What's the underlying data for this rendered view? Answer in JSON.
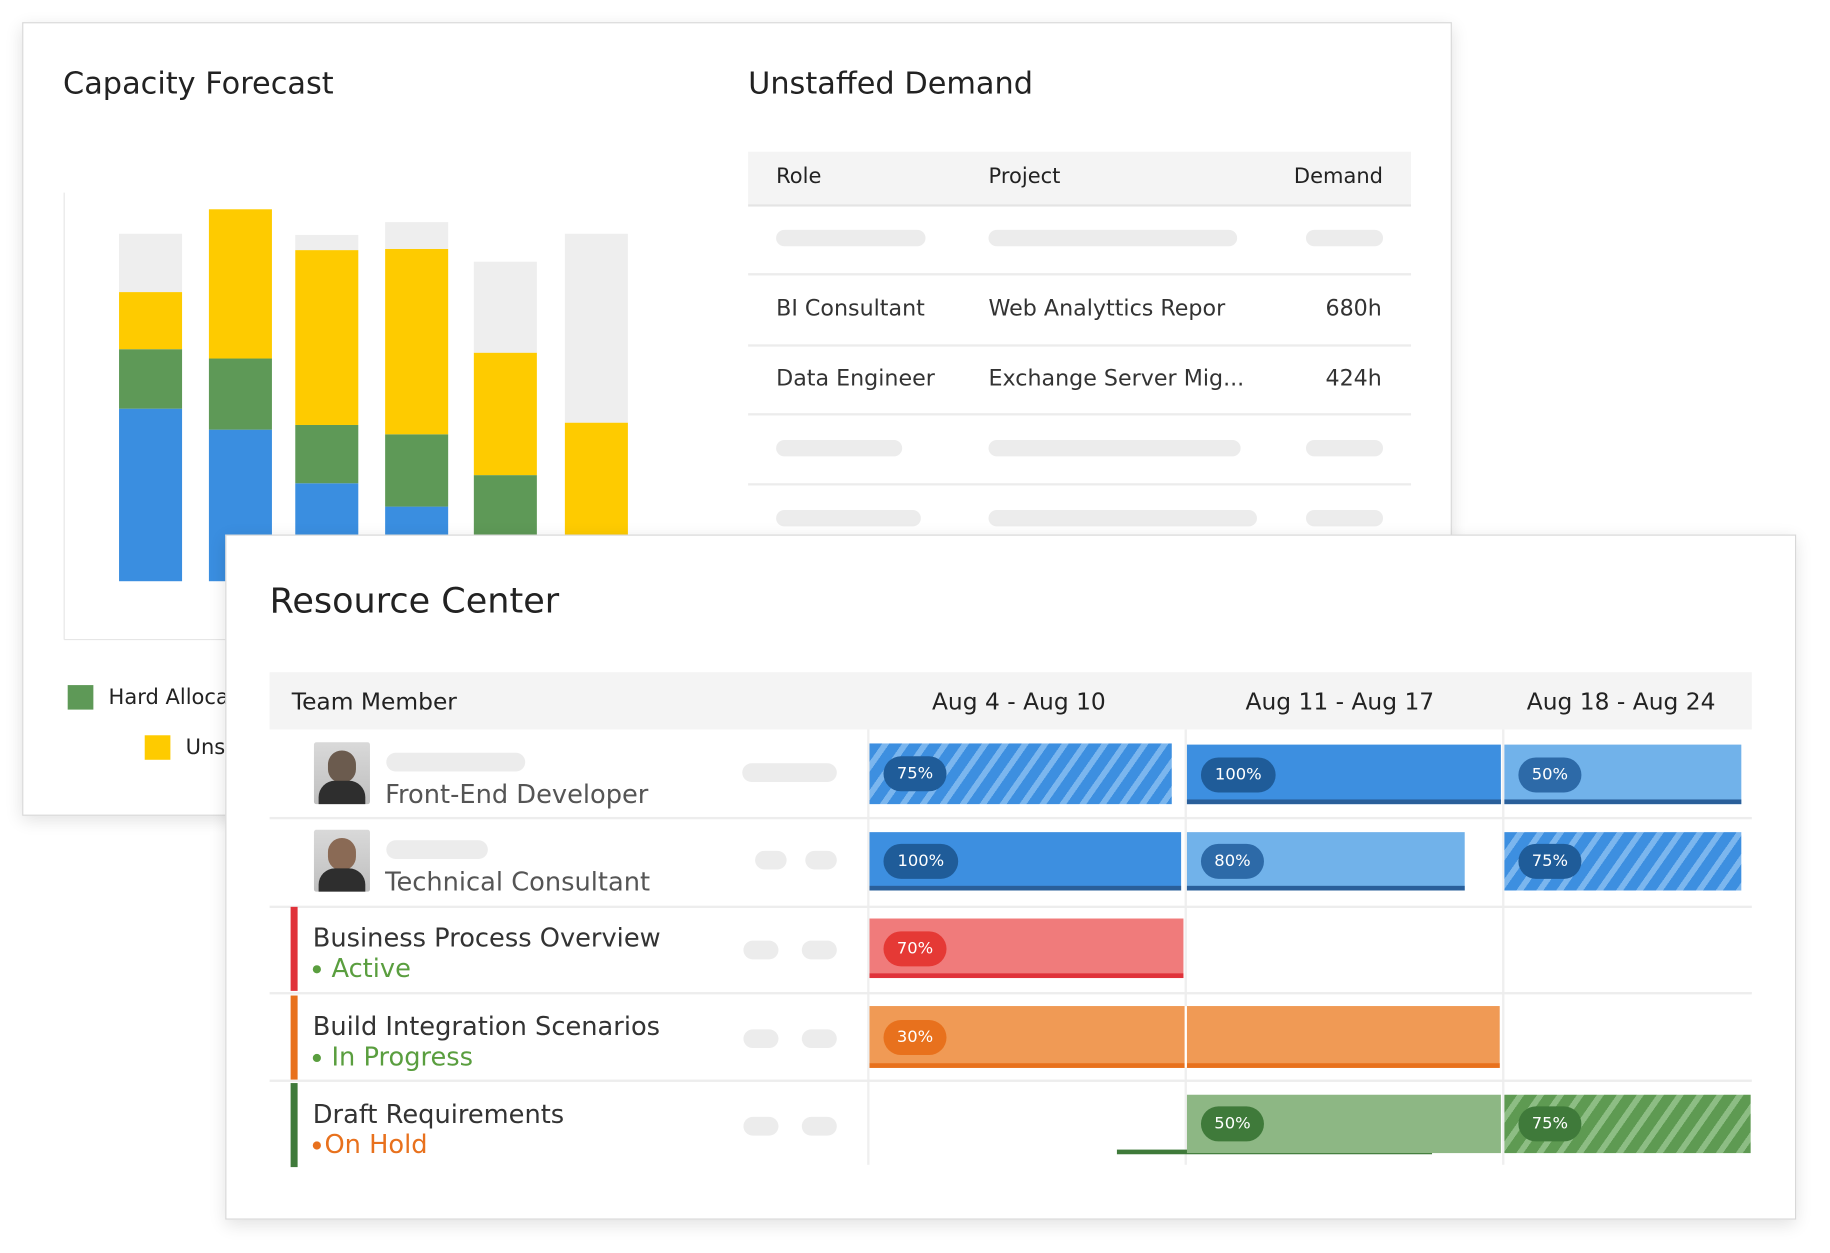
{
  "chart_data": {
    "type": "bar",
    "stacked": true,
    "title": "Capacity Forecast",
    "ylim": [
      0,
      100
    ],
    "series": [
      {
        "color": "#3a8ee0",
        "values": [
          44.4,
          39,
          25.2,
          19.2,
          0,
          0
        ]
      },
      {
        "name": "Hard Alloca",
        "color": "#5e9957",
        "values": [
          15.3,
          18.3,
          15,
          18.6,
          27.3,
          0
        ]
      },
      {
        "name": "Uns",
        "color": "#fecb00",
        "values": [
          14.7,
          38.4,
          45,
          47.7,
          31.5,
          40.8
        ]
      },
      {
        "color": "#eeeeee",
        "values": [
          15,
          0,
          3.9,
          6.9,
          23.4,
          48.6
        ]
      }
    ]
  },
  "unstaffed_demand": {
    "title": "Unstaffed Demand",
    "columns": [
      "Role",
      "Project",
      "Demand"
    ],
    "rows": [
      [
        "BI Consultant",
        "Web Analyttics Repor",
        "680h"
      ],
      [
        "Data Engineer",
        "Exchange Server Mig...",
        "424h"
      ]
    ]
  },
  "resource_center": {
    "title": "Resource Center",
    "columns": [
      "Team Member",
      "Aug 4 - Aug 10",
      "Aug 11 - Aug 17",
      "Aug 18 - Aug 24"
    ],
    "rows": [
      {
        "role": "Front-End Developer",
        "allocations": [
          "75%",
          "100%",
          "50%"
        ]
      },
      {
        "role": "Technical Consultant",
        "allocations": [
          "100%",
          "80%",
          "75%"
        ]
      },
      {
        "name": "Business Process Overview",
        "status": "Active",
        "allocations": [
          "70%"
        ]
      },
      {
        "name": "Build Integration Scenarios",
        "status": "In Progress",
        "allocations": [
          "30%"
        ]
      },
      {
        "name": "Draft Requirements",
        "status": "On Hold",
        "allocations": [
          "50%",
          "75%"
        ]
      }
    ]
  }
}
